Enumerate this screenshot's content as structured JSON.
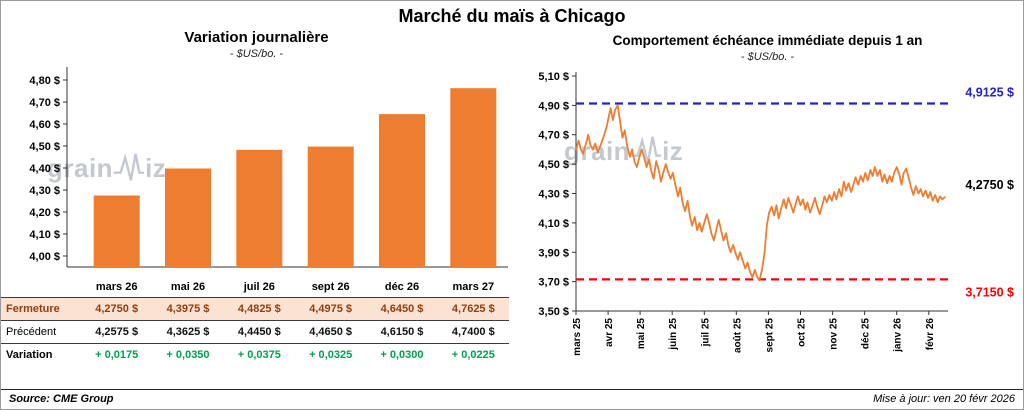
{
  "title": "Marché du maïs à Chicago",
  "watermark": {
    "full": "grainwiz",
    "left": "grain",
    "right": "iz"
  },
  "footer": {
    "source": "Source: CME Group",
    "updated": "Mise à jour: ven 20 févr 2026"
  },
  "left_panel": {
    "table": {
      "columns": [
        "mars 26",
        "mai 26",
        "juil 26",
        "sept 26",
        "déc 26",
        "mars 27"
      ],
      "rows": [
        {
          "style": "close",
          "label": "Fermeture",
          "values": [
            "4,2750  $",
            "4,3975  $",
            "4,4825  $",
            "4,4975  $",
            "4,6450  $",
            "4,7625  $"
          ]
        },
        {
          "style": "previous",
          "label": "Précédent",
          "values": [
            "4,2575  $",
            "4,3625  $",
            "4,4450  $",
            "4,4650  $",
            "4,6150  $",
            "4,7400  $"
          ]
        },
        {
          "style": "variation",
          "label": "Variation",
          "values": [
            "+ 0,0175",
            "+ 0,0350",
            "+ 0,0375",
            "+ 0,0325",
            "+ 0,0300",
            "+ 0,0225"
          ]
        }
      ]
    }
  },
  "chart_data": [
    {
      "type": "bar",
      "title": "Variation  journalière",
      "subtitle": "- $US/bo. -",
      "categories": [
        "mars 26",
        "mai 26",
        "juil 26",
        "sept 26",
        "déc 26",
        "mars 27"
      ],
      "values": [
        4.275,
        4.3975,
        4.4825,
        4.4975,
        4.645,
        4.7625
      ],
      "ylim": [
        3.95,
        4.85
      ],
      "yticks": [
        {
          "v": 4.0,
          "label": "4,00 $"
        },
        {
          "v": 4.1,
          "label": "4,10 $"
        },
        {
          "v": 4.2,
          "label": "4,20 $"
        },
        {
          "v": 4.3,
          "label": "4,30 $"
        },
        {
          "v": 4.4,
          "label": "4,40 $"
        },
        {
          "v": 4.5,
          "label": "4,50 $"
        },
        {
          "v": 4.6,
          "label": "4,60 $"
        },
        {
          "v": 4.7,
          "label": "4,70 $"
        },
        {
          "v": 4.8,
          "label": "4,80 $"
        }
      ],
      "bar_color": "#ED7D31",
      "source": "CME Group"
    },
    {
      "type": "line",
      "title": "Comportement  échéance immédiate depuis 1 an",
      "subtitle": "- $US/bo. -",
      "ylim": [
        3.5,
        5.1
      ],
      "yticks": [
        {
          "v": 3.5,
          "label": "3,50 $"
        },
        {
          "v": 3.7,
          "label": "3,70 $"
        },
        {
          "v": 3.9,
          "label": "3,90 $"
        },
        {
          "v": 4.1,
          "label": "4,10 $"
        },
        {
          "v": 4.3,
          "label": "4,30 $"
        },
        {
          "v": 4.5,
          "label": "4,50 $"
        },
        {
          "v": 4.7,
          "label": "4,70 $"
        },
        {
          "v": 4.9,
          "label": "4,90 $"
        },
        {
          "v": 5.1,
          "label": "5,10 $"
        }
      ],
      "x_labels": [
        "mars 25",
        "avr 25",
        "mai 25",
        "juin 25",
        "juil 25",
        "août 25",
        "sept 25",
        "oct 25",
        "nov 25",
        "déc 25",
        "janv 26",
        "févr 26"
      ],
      "x_max": 11.6,
      "x_label_step": 1,
      "line_color": "#ED7D31",
      "ref_lines": [
        {
          "v": 4.9125,
          "label": "4,9125 $",
          "color": "#2323c8",
          "position": "above"
        },
        {
          "v": 3.715,
          "label": "3,7150 $",
          "color": "#ff0000",
          "position": "below"
        }
      ],
      "end_label": {
        "v": 4.275,
        "label": "4,2750 $",
        "color": "#000000"
      },
      "points": [
        [
          0.0,
          4.6
        ],
        [
          0.08,
          4.66
        ],
        [
          0.15,
          4.6
        ],
        [
          0.22,
          4.57
        ],
        [
          0.3,
          4.63
        ],
        [
          0.38,
          4.7
        ],
        [
          0.45,
          4.63
        ],
        [
          0.52,
          4.6
        ],
        [
          0.6,
          4.64
        ],
        [
          0.68,
          4.58
        ],
        [
          0.75,
          4.62
        ],
        [
          0.85,
          4.68
        ],
        [
          0.95,
          4.75
        ],
        [
          1.02,
          4.82
        ],
        [
          1.08,
          4.88
        ],
        [
          1.15,
          4.8
        ],
        [
          1.22,
          4.87
        ],
        [
          1.3,
          4.9
        ],
        [
          1.38,
          4.78
        ],
        [
          1.45,
          4.68
        ],
        [
          1.52,
          4.73
        ],
        [
          1.6,
          4.62
        ],
        [
          1.68,
          4.55
        ],
        [
          1.75,
          4.6
        ],
        [
          1.82,
          4.52
        ],
        [
          1.9,
          4.48
        ],
        [
          1.98,
          4.55
        ],
        [
          2.05,
          4.6
        ],
        [
          2.12,
          4.55
        ],
        [
          2.2,
          4.48
        ],
        [
          2.28,
          4.53
        ],
        [
          2.35,
          4.45
        ],
        [
          2.42,
          4.4
        ],
        [
          2.5,
          4.52
        ],
        [
          2.58,
          4.46
        ],
        [
          2.65,
          4.38
        ],
        [
          2.72,
          4.44
        ],
        [
          2.8,
          4.5
        ],
        [
          2.88,
          4.44
        ],
        [
          2.95,
          4.4
        ],
        [
          3.02,
          4.44
        ],
        [
          3.1,
          4.36
        ],
        [
          3.18,
          4.28
        ],
        [
          3.25,
          4.34
        ],
        [
          3.32,
          4.24
        ],
        [
          3.4,
          4.18
        ],
        [
          3.48,
          4.25
        ],
        [
          3.55,
          4.15
        ],
        [
          3.62,
          4.08
        ],
        [
          3.7,
          4.14
        ],
        [
          3.78,
          4.05
        ],
        [
          3.85,
          4.1
        ],
        [
          3.92,
          4.04
        ],
        [
          4.0,
          4.1
        ],
        [
          4.08,
          4.16
        ],
        [
          4.15,
          4.1
        ],
        [
          4.22,
          4.03
        ],
        [
          4.3,
          3.98
        ],
        [
          4.38,
          4.06
        ],
        [
          4.45,
          4.12
        ],
        [
          4.52,
          4.05
        ],
        [
          4.6,
          3.98
        ],
        [
          4.68,
          4.03
        ],
        [
          4.75,
          3.95
        ],
        [
          4.82,
          3.9
        ],
        [
          4.9,
          3.95
        ],
        [
          4.98,
          3.89
        ],
        [
          5.05,
          3.85
        ],
        [
          5.12,
          3.9
        ],
        [
          5.2,
          3.84
        ],
        [
          5.28,
          3.79
        ],
        [
          5.35,
          3.83
        ],
        [
          5.42,
          3.77
        ],
        [
          5.5,
          3.73
        ],
        [
          5.58,
          3.78
        ],
        [
          5.65,
          3.73
        ],
        [
          5.72,
          3.71
        ],
        [
          5.8,
          3.78
        ],
        [
          5.88,
          3.9
        ],
        [
          5.95,
          4.08
        ],
        [
          6.02,
          4.17
        ],
        [
          6.1,
          4.21
        ],
        [
          6.18,
          4.15
        ],
        [
          6.25,
          4.22
        ],
        [
          6.32,
          4.13
        ],
        [
          6.4,
          4.2
        ],
        [
          6.48,
          4.26
        ],
        [
          6.55,
          4.2
        ],
        [
          6.62,
          4.27
        ],
        [
          6.7,
          4.22
        ],
        [
          6.78,
          4.17
        ],
        [
          6.85,
          4.23
        ],
        [
          6.92,
          4.28
        ],
        [
          7.0,
          4.22
        ],
        [
          7.08,
          4.26
        ],
        [
          7.15,
          4.19
        ],
        [
          7.22,
          4.24
        ],
        [
          7.3,
          4.17
        ],
        [
          7.38,
          4.22
        ],
        [
          7.45,
          4.27
        ],
        [
          7.52,
          4.21
        ],
        [
          7.6,
          4.16
        ],
        [
          7.68,
          4.22
        ],
        [
          7.75,
          4.28
        ],
        [
          7.82,
          4.24
        ],
        [
          7.9,
          4.29
        ],
        [
          7.98,
          4.25
        ],
        [
          8.05,
          4.31
        ],
        [
          8.12,
          4.26
        ],
        [
          8.2,
          4.33
        ],
        [
          8.28,
          4.28
        ],
        [
          8.35,
          4.38
        ],
        [
          8.42,
          4.32
        ],
        [
          8.5,
          4.37
        ],
        [
          8.58,
          4.31
        ],
        [
          8.65,
          4.36
        ],
        [
          8.72,
          4.41
        ],
        [
          8.8,
          4.36
        ],
        [
          8.88,
          4.42
        ],
        [
          8.95,
          4.38
        ],
        [
          9.02,
          4.44
        ],
        [
          9.1,
          4.39
        ],
        [
          9.18,
          4.46
        ],
        [
          9.25,
          4.42
        ],
        [
          9.32,
          4.48
        ],
        [
          9.4,
          4.42
        ],
        [
          9.48,
          4.46
        ],
        [
          9.55,
          4.38
        ],
        [
          9.62,
          4.43
        ],
        [
          9.7,
          4.37
        ],
        [
          9.78,
          4.42
        ],
        [
          9.85,
          4.38
        ],
        [
          9.92,
          4.44
        ],
        [
          10.0,
          4.48
        ],
        [
          10.08,
          4.43
        ],
        [
          10.15,
          4.36
        ],
        [
          10.22,
          4.44
        ],
        [
          10.3,
          4.47
        ],
        [
          10.38,
          4.4
        ],
        [
          10.45,
          4.34
        ],
        [
          10.52,
          4.29
        ],
        [
          10.6,
          4.35
        ],
        [
          10.68,
          4.3
        ],
        [
          10.75,
          4.33
        ],
        [
          10.82,
          4.28
        ],
        [
          10.9,
          4.32
        ],
        [
          10.98,
          4.27
        ],
        [
          11.05,
          4.31
        ],
        [
          11.12,
          4.25
        ],
        [
          11.2,
          4.29
        ],
        [
          11.28,
          4.24
        ],
        [
          11.35,
          4.28
        ],
        [
          11.42,
          4.26
        ],
        [
          11.5,
          4.275
        ]
      ]
    }
  ]
}
